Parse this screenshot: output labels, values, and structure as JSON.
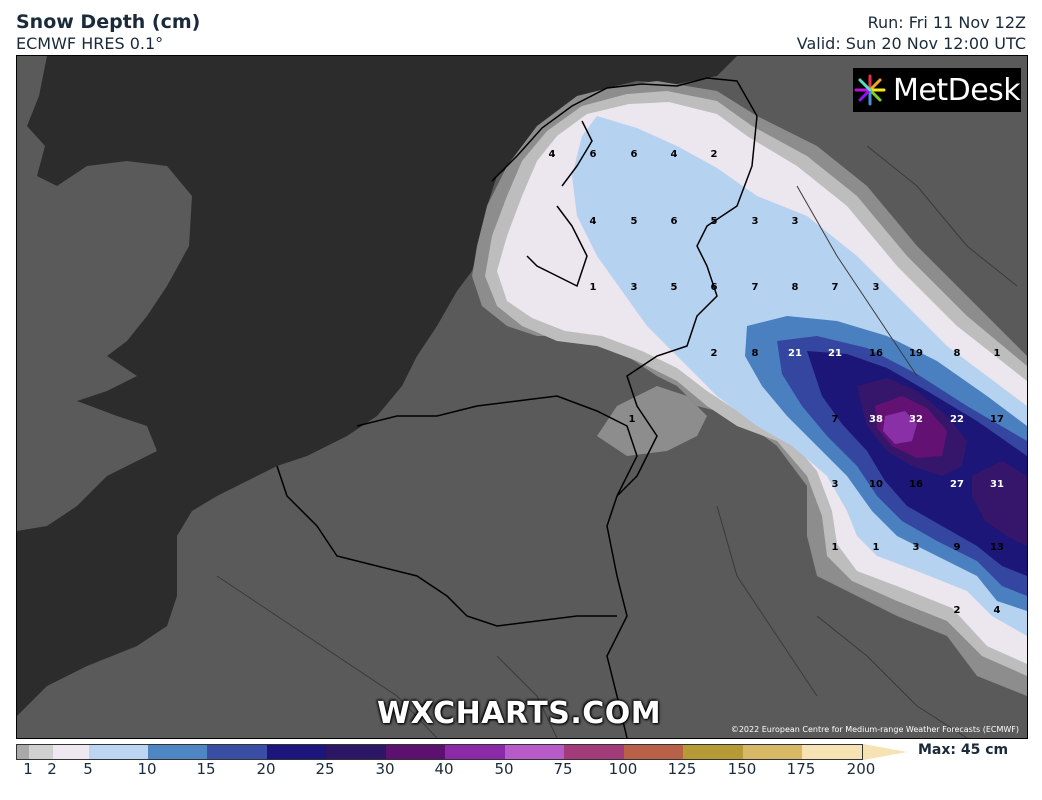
{
  "header": {
    "title": "Snow Depth (cm)",
    "model": "ECMWF HRES 0.1°",
    "run": "Run: Fri 11 Nov 12Z",
    "valid": "Valid: Sun 20 Nov 12:00 UTC"
  },
  "logo": {
    "text": "MetDesk"
  },
  "watermark": "WXCHARTS.COM",
  "copyright": "©2022 European Centre for Medium-range Weather Forecasts (ECMWF)",
  "legend": {
    "max_label": "Max: 45 cm",
    "ticks": [
      "1",
      "2",
      "5",
      "10",
      "15",
      "20",
      "25",
      "30",
      "40",
      "50",
      "75",
      "100",
      "125",
      "150",
      "175",
      "200"
    ],
    "colors": [
      "#a9a9a9",
      "#d0d0d0",
      "#efe8f0",
      "#bcd6f2",
      "#4e86c4",
      "#3a4ea6",
      "#1c167c",
      "#2e1666",
      "#5c1070",
      "#8b2aa8",
      "#b75bc8",
      "#a33a7a",
      "#b86048",
      "#b69a36",
      "#d6b866",
      "#f6e2b2"
    ]
  },
  "map": {
    "colors": {
      "sea": "#2c2c2c",
      "land": "#5a5a5a",
      "s1": "#8d8d8d",
      "s2": "#bdbdbd",
      "s5": "#ece6ee",
      "s10": "#b6d2f1",
      "s15": "#4a80c0",
      "s20": "#3446a0",
      "s25": "#1c1678",
      "s30": "#36166a",
      "s40": "#631274",
      "s50": "#8a30a6"
    },
    "values": [
      {
        "v": "4",
        "c": "dark"
      },
      {
        "v": "6",
        "c": "dark"
      },
      {
        "v": "6",
        "c": "dark"
      },
      {
        "v": "4",
        "c": "dark"
      },
      {
        "v": "2",
        "c": "dark"
      },
      {
        "v": "4",
        "c": "dark"
      },
      {
        "v": "5",
        "c": "dark"
      },
      {
        "v": "6",
        "c": "dark"
      },
      {
        "v": "5",
        "c": "dark"
      },
      {
        "v": "3",
        "c": "dark"
      },
      {
        "v": "3",
        "c": "dark"
      },
      {
        "v": "1",
        "c": "dark"
      },
      {
        "v": "3",
        "c": "dark"
      },
      {
        "v": "5",
        "c": "dark"
      },
      {
        "v": "6",
        "c": "dark"
      },
      {
        "v": "7",
        "c": "dark"
      },
      {
        "v": "8",
        "c": "dark"
      },
      {
        "v": "7",
        "c": "dark"
      },
      {
        "v": "3",
        "c": "dark"
      },
      {
        "v": "2",
        "c": "dark"
      },
      {
        "v": "8",
        "c": "dark"
      },
      {
        "v": "21",
        "c": "light"
      },
      {
        "v": "21",
        "c": "light"
      },
      {
        "v": "16",
        "c": "dark"
      },
      {
        "v": "19",
        "c": "dark"
      },
      {
        "v": "8",
        "c": "dark"
      },
      {
        "v": "1",
        "c": "dark"
      },
      {
        "v": "1",
        "c": "dark"
      },
      {
        "v": "7",
        "c": "dark"
      },
      {
        "v": "38",
        "c": "light"
      },
      {
        "v": "32",
        "c": "light"
      },
      {
        "v": "22",
        "c": "light"
      },
      {
        "v": "17",
        "c": "dark"
      },
      {
        "v": "3",
        "c": "dark"
      },
      {
        "v": "10",
        "c": "dark"
      },
      {
        "v": "16",
        "c": "dark"
      },
      {
        "v": "27",
        "c": "light"
      },
      {
        "v": "31",
        "c": "light"
      },
      {
        "v": "1",
        "c": "dark"
      },
      {
        "v": "1",
        "c": "dark"
      },
      {
        "v": "3",
        "c": "dark"
      },
      {
        "v": "9",
        "c": "dark"
      },
      {
        "v": "13",
        "c": "dark"
      },
      {
        "v": "2",
        "c": "dark"
      },
      {
        "v": "4",
        "c": "dark"
      }
    ]
  }
}
